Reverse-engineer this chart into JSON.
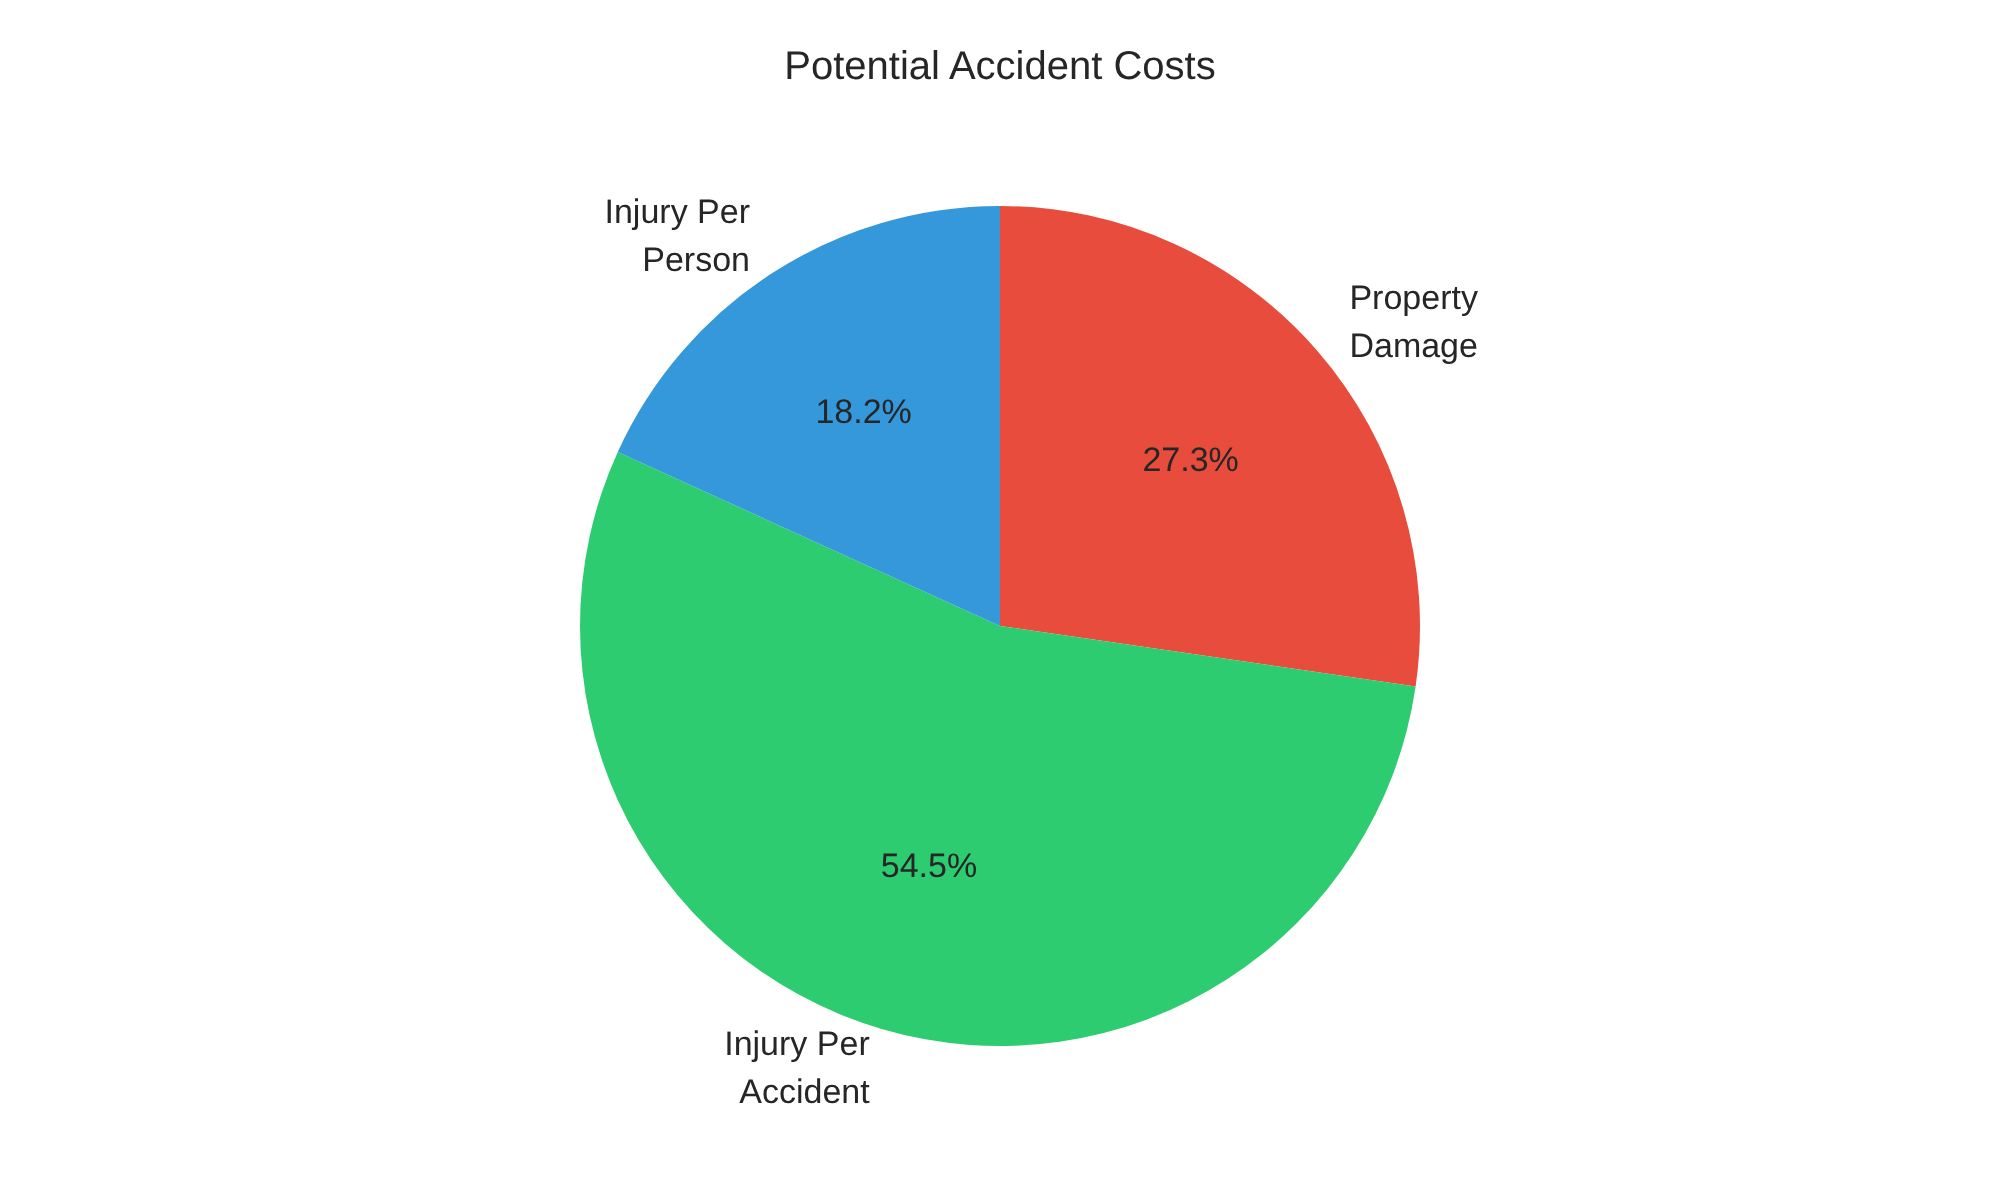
{
  "chart_data": {
    "type": "pie",
    "title": "Potential Accident Costs",
    "categories": [
      "Property Damage",
      "Injury Per Accident",
      "Injury Per Person"
    ],
    "values": [
      27.3,
      54.5,
      18.2
    ],
    "colors": [
      "#e74c3c",
      "#2ecc71",
      "#3498db"
    ],
    "value_labels": [
      "27.3%",
      "54.5%",
      "18.2%"
    ]
  }
}
